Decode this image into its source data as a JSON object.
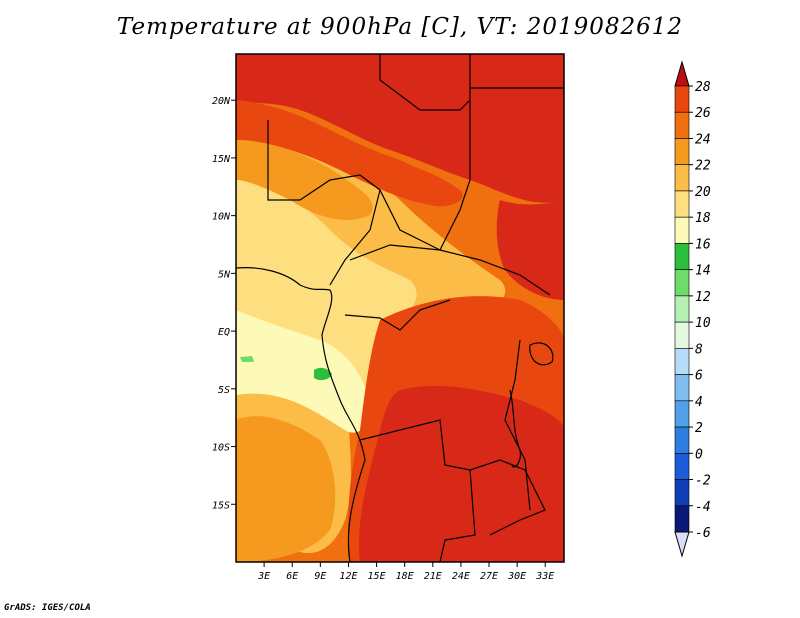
{
  "title": "Temperature at 900hPa [C], VT: 2019082612",
  "credit": "GrADS: IGES/COLA",
  "map": {
    "lon_range": [
      0,
      35
    ],
    "lat_range": [
      -20,
      24
    ],
    "lat_ticks": [
      {
        "value": 20,
        "label": "20N"
      },
      {
        "value": 15,
        "label": "15N"
      },
      {
        "value": 10,
        "label": "10N"
      },
      {
        "value": 5,
        "label": "5N"
      },
      {
        "value": 0,
        "label": "EQ"
      },
      {
        "value": -5,
        "label": "5S"
      },
      {
        "value": -10,
        "label": "10S"
      },
      {
        "value": -15,
        "label": "15S"
      }
    ],
    "lon_ticks": [
      {
        "value": 3,
        "label": "3E"
      },
      {
        "value": 6,
        "label": "6E"
      },
      {
        "value": 9,
        "label": "9E"
      },
      {
        "value": 12,
        "label": "12E"
      },
      {
        "value": 15,
        "label": "15E"
      },
      {
        "value": 18,
        "label": "18E"
      },
      {
        "value": 21,
        "label": "21E"
      },
      {
        "value": 24,
        "label": "24E"
      },
      {
        "value": 27,
        "label": "27E"
      },
      {
        "value": 30,
        "label": "30E"
      },
      {
        "value": 33,
        "label": "33E"
      }
    ]
  },
  "colorbar": {
    "levels": [
      {
        "label": "28",
        "color": "#d82818"
      },
      {
        "label": "26",
        "color": "#e84810"
      },
      {
        "label": "24",
        "color": "#f07010"
      },
      {
        "label": "22",
        "color": "#f59a1e"
      },
      {
        "label": "20",
        "color": "#fbbc48"
      },
      {
        "label": "18",
        "color": "#fddf80"
      },
      {
        "label": "16",
        "color": "#fdfab8"
      },
      {
        "label": "14",
        "color": "#2cbf3c"
      },
      {
        "label": "12",
        "color": "#6edc6a"
      },
      {
        "label": "10",
        "color": "#b6f0b2"
      },
      {
        "label": "8",
        "color": "#e4f8e0"
      },
      {
        "label": "6",
        "color": "#b6dcf8"
      },
      {
        "label": "4",
        "color": "#80bef0"
      },
      {
        "label": "2",
        "color": "#50a0ea"
      },
      {
        "label": "0",
        "color": "#2e7ee2"
      },
      {
        "label": "-2",
        "color": "#1c5cd8"
      },
      {
        "label": "-4",
        "color": "#1040b8"
      },
      {
        "label": "-6",
        "color": "#0a1878"
      }
    ],
    "top_cap_color": "#c00e10",
    "bottom_cap_color": "#dcdcf8"
  }
}
